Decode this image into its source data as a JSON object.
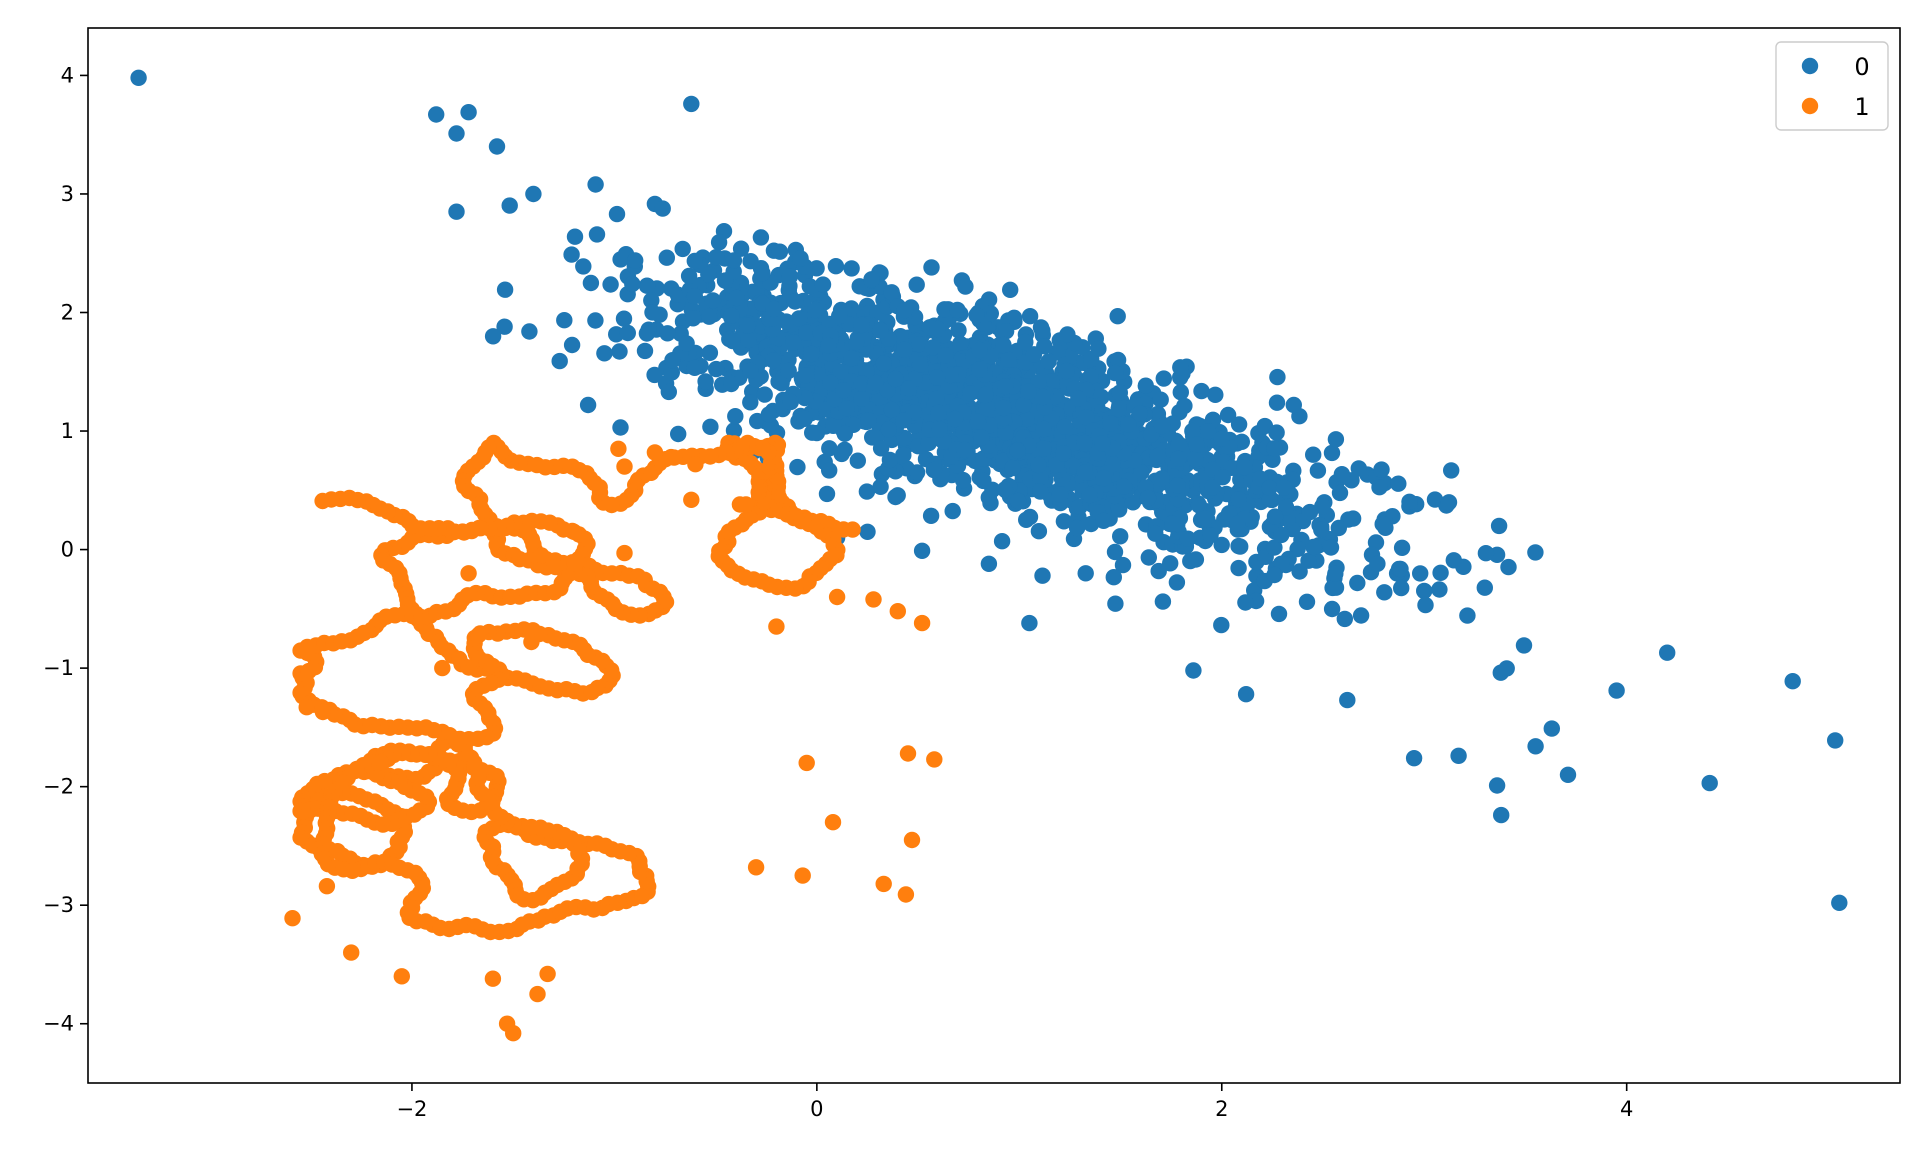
{
  "chart_data": {
    "type": "scatter",
    "title": "",
    "xlabel": "",
    "ylabel": "",
    "xlim": [
      -3.6,
      5.35
    ],
    "ylim": [
      -4.5,
      4.4
    ],
    "xticks": [
      -2,
      0,
      2,
      4
    ],
    "yticks": [
      -4,
      -3,
      -2,
      -1,
      0,
      1,
      2,
      3,
      4
    ],
    "grid": false,
    "legend": {
      "placement": "top-right",
      "entries": [
        "0",
        "1"
      ]
    },
    "series": [
      {
        "name": "0",
        "color": "#1f77b4",
        "cluster": {
          "n": 1800,
          "center": [
            0.9,
            1.15
          ],
          "sd_along": 1.05,
          "sd_across": 0.33,
          "direction": [
            0.84,
            -0.54
          ],
          "seed": 7
        },
        "points": [
          [
            -3.35,
            3.98
          ],
          [
            -1.88,
            3.67
          ],
          [
            -1.72,
            3.69
          ],
          [
            -1.78,
            3.51
          ],
          [
            -1.58,
            3.4
          ],
          [
            -0.62,
            3.76
          ],
          [
            -1.78,
            2.85
          ],
          [
            -1.4,
            3.0
          ],
          [
            -1.42,
            1.84
          ],
          [
            -1.27,
            1.59
          ],
          [
            -1.13,
            1.22
          ],
          [
            -0.97,
            1.03
          ],
          [
            0.05,
            0.47
          ],
          [
            0.25,
            0.15
          ],
          [
            0.1,
            0.1
          ],
          [
            0.52,
            -0.01
          ],
          [
            0.85,
            -0.12
          ],
          [
            1.05,
            -0.62
          ],
          [
            1.86,
            -1.02
          ],
          [
            2.12,
            -1.22
          ],
          [
            2.62,
            -1.27
          ],
          [
            2.95,
            -1.76
          ],
          [
            3.17,
            -1.74
          ],
          [
            3.36,
            -1.99
          ],
          [
            3.38,
            -2.24
          ],
          [
            3.71,
            -1.9
          ],
          [
            3.95,
            -1.19
          ],
          [
            4.2,
            -0.87
          ],
          [
            4.41,
            -1.97
          ],
          [
            4.82,
            -1.11
          ],
          [
            5.03,
            -1.61
          ],
          [
            5.05,
            -2.98
          ],
          [
            3.37,
            0.2
          ],
          [
            3.55,
            -1.66
          ],
          [
            3.63,
            -1.51
          ]
        ]
      },
      {
        "name": "1",
        "color": "#ff7f0e",
        "walk": {
          "n": 720,
          "start": [
            0.22,
            0.18
          ],
          "step": 0.045,
          "seed": 11,
          "xlim": [
            -2.55,
            0.7
          ],
          "ylim": [
            -4.1,
            0.9
          ]
        },
        "points": [
          [
            -0.98,
            0.85
          ],
          [
            -0.95,
            0.7
          ],
          [
            -0.8,
            0.82
          ],
          [
            -0.72,
            0.78
          ],
          [
            -0.6,
            0.72
          ],
          [
            -0.38,
            0.38
          ],
          [
            -0.62,
            0.42
          ],
          [
            -1.36,
            -0.05
          ],
          [
            -1.2,
            0.15
          ],
          [
            -1.72,
            -0.2
          ],
          [
            -1.67,
            -0.72
          ],
          [
            -1.41,
            -0.78
          ],
          [
            -1.85,
            -1.0
          ],
          [
            -2.52,
            -1.33
          ],
          [
            -2.44,
            -1.37
          ],
          [
            -2.59,
            -3.11
          ],
          [
            -2.42,
            -2.84
          ],
          [
            -2.3,
            -3.4
          ],
          [
            -2.05,
            -3.6
          ],
          [
            -1.6,
            -3.62
          ],
          [
            -1.33,
            -3.58
          ],
          [
            -1.38,
            -3.75
          ],
          [
            -1.53,
            -4.0
          ],
          [
            -1.5,
            -4.08
          ],
          [
            -0.3,
            -2.68
          ],
          [
            -0.07,
            -2.75
          ],
          [
            -0.05,
            -1.8
          ],
          [
            0.08,
            -2.3
          ],
          [
            0.33,
            -2.82
          ],
          [
            0.44,
            -2.91
          ],
          [
            0.47,
            -2.45
          ],
          [
            0.45,
            -1.72
          ],
          [
            0.58,
            -1.77
          ],
          [
            0.52,
            -0.62
          ],
          [
            0.4,
            -0.52
          ],
          [
            0.28,
            -0.42
          ],
          [
            -0.35,
            0.38
          ],
          [
            -0.95,
            -0.03
          ],
          [
            0.1,
            -0.4
          ],
          [
            -0.2,
            -0.65
          ]
        ]
      }
    ]
  }
}
